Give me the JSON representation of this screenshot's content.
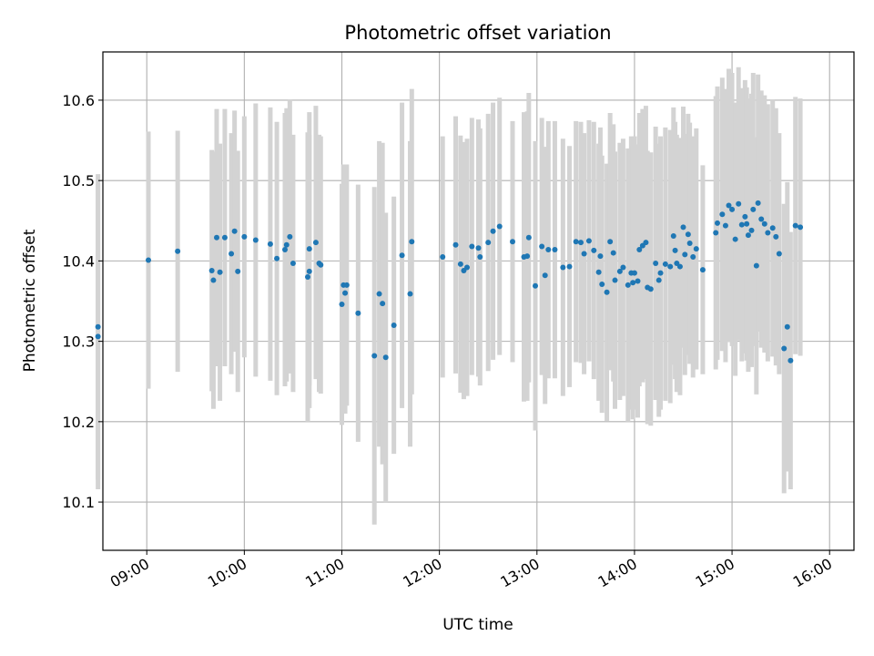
{
  "chart_data": {
    "type": "scatter",
    "title": "Photometric offset variation",
    "xlabel": "UTC time",
    "ylabel": "Photometric offset",
    "x_tick_labels": [
      "09:00",
      "10:00",
      "11:00",
      "12:00",
      "13:00",
      "14:00",
      "15:00",
      "16:00"
    ],
    "y_tick_labels": [
      "10.1",
      "10.2",
      "10.3",
      "10.4",
      "10.5",
      "10.6"
    ],
    "y_ticks": [
      10.1,
      10.2,
      10.3,
      10.4,
      10.5,
      10.6
    ],
    "xlim": [
      "08:33",
      "16:15"
    ],
    "ylim": [
      10.04,
      10.66
    ],
    "grid": true,
    "colors": {
      "point": "#1f77b4",
      "errorbar": "#d3d3d3",
      "grid": "#b0b0b0"
    },
    "series": [
      {
        "x": [
          "08:30",
          "08:30",
          "09:01",
          "09:19",
          "09:40",
          "09:41",
          "09:43",
          "09:45",
          "09:48",
          "09:52",
          "09:54",
          "09:56",
          "10:00",
          "10:07",
          "10:16",
          "10:20",
          "10:25",
          "10:26",
          "10:28",
          "10:30",
          "10:39",
          "10:40",
          "10:40",
          "10:44",
          "10:46",
          "10:47",
          "11:00",
          "11:01",
          "11:02",
          "11:03",
          "11:10",
          "11:20",
          "11:23",
          "11:25",
          "11:27",
          "11:32",
          "11:37",
          "11:42",
          "11:43",
          "12:02",
          "12:10",
          "12:13",
          "12:15",
          "12:17",
          "12:20",
          "12:24",
          "12:25",
          "12:30",
          "12:33",
          "12:37",
          "12:45",
          "12:52",
          "12:54",
          "12:55",
          "12:59",
          "13:03",
          "13:05",
          "13:07",
          "13:11",
          "13:16",
          "13:20",
          "13:24",
          "13:27",
          "13:29",
          "13:32",
          "13:35",
          "13:38",
          "13:39",
          "13:40",
          "13:43",
          "13:45",
          "13:47",
          "13:48",
          "13:51",
          "13:53",
          "13:56",
          "13:58",
          "13:59",
          "14:00",
          "14:02",
          "14:03",
          "14:05",
          "14:07",
          "14:08",
          "14:10",
          "14:13",
          "14:15",
          "14:16",
          "14:19",
          "14:22",
          "14:24",
          "14:25",
          "14:26",
          "14:28",
          "14:30",
          "14:31",
          "14:33",
          "14:34",
          "14:36",
          "14:38",
          "14:42",
          "14:50",
          "14:51",
          "14:54",
          "14:56",
          "14:58",
          "15:00",
          "15:02",
          "15:04",
          "15:06",
          "15:08",
          "15:09",
          "15:10",
          "15:12",
          "15:13",
          "15:15",
          "15:16",
          "15:18",
          "15:20",
          "15:22",
          "15:25",
          "15:27",
          "15:29",
          "15:32",
          "15:34",
          "15:36",
          "15:39",
          "15:42"
        ],
        "y": [
          10.318,
          10.306,
          10.401,
          10.412,
          10.388,
          10.376,
          10.429,
          10.386,
          10.429,
          10.409,
          10.437,
          10.387,
          10.43,
          10.426,
          10.421,
          10.403,
          10.414,
          10.42,
          10.43,
          10.397,
          10.38,
          10.387,
          10.415,
          10.423,
          10.397,
          10.395,
          10.346,
          10.37,
          10.36,
          10.37,
          10.335,
          10.282,
          10.359,
          10.347,
          10.28,
          10.32,
          10.407,
          10.359,
          10.424,
          10.405,
          10.42,
          10.396,
          10.388,
          10.392,
          10.418,
          10.416,
          10.405,
          10.423,
          10.437,
          10.443,
          10.424,
          10.405,
          10.406,
          10.429,
          10.369,
          10.418,
          10.382,
          10.414,
          10.414,
          10.392,
          10.393,
          10.424,
          10.423,
          10.409,
          10.425,
          10.413,
          10.386,
          10.406,
          10.371,
          10.361,
          10.424,
          10.41,
          10.376,
          10.387,
          10.392,
          10.37,
          10.385,
          10.373,
          10.385,
          10.375,
          10.414,
          10.419,
          10.423,
          10.367,
          10.365,
          10.397,
          10.376,
          10.385,
          10.396,
          10.393,
          10.431,
          10.413,
          10.397,
          10.393,
          10.442,
          10.408,
          10.433,
          10.422,
          10.405,
          10.415,
          10.389,
          10.435,
          10.447,
          10.458,
          10.444,
          10.469,
          10.464,
          10.427,
          10.471,
          10.445,
          10.455,
          10.446,
          10.432,
          10.438,
          10.464,
          10.394,
          10.472,
          10.452,
          10.446,
          10.435,
          10.441,
          10.43,
          10.409,
          10.291,
          10.318,
          10.276,
          10.444,
          10.442
        ],
        "yerr": [
          0.19,
          0.19,
          0.16,
          0.15,
          0.15,
          0.16,
          0.16,
          0.16,
          0.16,
          0.15,
          0.15,
          0.15,
          0.15,
          0.17,
          0.17,
          0.17,
          0.17,
          0.17,
          0.17,
          0.16,
          0.18,
          0.17,
          0.17,
          0.17,
          0.16,
          0.16,
          0.15,
          0.15,
          0.15,
          0.15,
          0.16,
          0.21,
          0.19,
          0.2,
          0.18,
          0.16,
          0.19,
          0.19,
          0.19,
          0.15,
          0.16,
          0.16,
          0.16,
          0.16,
          0.16,
          0.16,
          0.16,
          0.16,
          0.16,
          0.16,
          0.15,
          0.18,
          0.18,
          0.18,
          0.18,
          0.16,
          0.16,
          0.16,
          0.16,
          0.16,
          0.15,
          0.15,
          0.15,
          0.15,
          0.15,
          0.16,
          0.16,
          0.16,
          0.16,
          0.16,
          0.16,
          0.16,
          0.16,
          0.16,
          0.16,
          0.17,
          0.17,
          0.17,
          0.17,
          0.17,
          0.17,
          0.17,
          0.17,
          0.17,
          0.17,
          0.17,
          0.17,
          0.17,
          0.17,
          0.17,
          0.16,
          0.16,
          0.16,
          0.16,
          0.15,
          0.15,
          0.15,
          0.15,
          0.15,
          0.15,
          0.13,
          0.17,
          0.17,
          0.17,
          0.17,
          0.17,
          0.17,
          0.17,
          0.17,
          0.17,
          0.17,
          0.17,
          0.17,
          0.17,
          0.17,
          0.16,
          0.16,
          0.16,
          0.16,
          0.16,
          0.16,
          0.16,
          0.15,
          0.18,
          0.18,
          0.16,
          0.16,
          0.16
        ]
      }
    ]
  }
}
